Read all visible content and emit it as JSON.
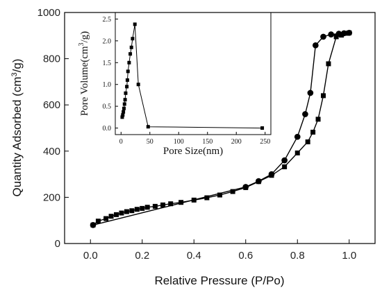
{
  "chart_data": [
    {
      "type": "line",
      "title": "",
      "xlabel": "Relative Pressure (P/Po)",
      "ylabel_parts": [
        "Quantity Adsorbed (cm",
        "3",
        "/g)"
      ],
      "xlim": [
        -0.1,
        1.1
      ],
      "ylim": [
        0,
        1000
      ],
      "xticks": [
        0.0,
        0.2,
        0.4,
        0.6,
        0.8,
        1.0
      ],
      "xtick_labels": [
        "0.0",
        "0.2",
        "0.4",
        "0.6",
        "0.8",
        "1.0"
      ],
      "yticks": [
        0,
        200,
        400,
        600,
        800,
        1000
      ],
      "ytick_labels": [
        "0",
        "200",
        "400",
        "600",
        "800",
        "1000"
      ],
      "grid": false,
      "legend": "none",
      "series": [
        {
          "marker": "square",
          "points": [
            [
              0.01,
              80
            ],
            [
              0.03,
              97
            ],
            [
              0.06,
              108
            ],
            [
              0.08,
              118
            ],
            [
              0.1,
              125
            ],
            [
              0.12,
              132
            ],
            [
              0.14,
              138
            ],
            [
              0.16,
              142
            ],
            [
              0.18,
              148
            ],
            [
              0.2,
              152
            ],
            [
              0.22,
              157
            ],
            [
              0.25,
              161
            ],
            [
              0.28,
              167
            ],
            [
              0.31,
              172
            ],
            [
              0.35,
              178
            ],
            [
              0.4,
              188
            ],
            [
              0.45,
              198
            ],
            [
              0.5,
              210
            ],
            [
              0.55,
              225
            ],
            [
              0.6,
              242
            ],
            [
              0.65,
              268
            ],
            [
              0.7,
              295
            ],
            [
              0.75,
              332
            ],
            [
              0.8,
              392
            ],
            [
              0.84,
              440
            ],
            [
              0.86,
              482
            ],
            [
              0.88,
              538
            ],
            [
              0.9,
              640
            ],
            [
              0.92,
              778
            ],
            [
              0.95,
              895
            ],
            [
              0.97,
              902
            ],
            [
              0.99,
              910
            ],
            [
              1.0,
              912
            ]
          ]
        },
        {
          "marker": "circle",
          "points": [
            [
              0.01,
              80
            ],
            [
              0.6,
              245
            ],
            [
              0.65,
              270
            ],
            [
              0.7,
              300
            ],
            [
              0.75,
              360
            ],
            [
              0.8,
              462
            ],
            [
              0.83,
              560
            ],
            [
              0.85,
              652
            ],
            [
              0.87,
              858
            ],
            [
              0.9,
              895
            ],
            [
              0.93,
              905
            ],
            [
              0.96,
              908
            ],
            [
              0.98,
              910
            ],
            [
              1.0,
              912
            ]
          ]
        }
      ]
    },
    {
      "type": "line",
      "title": "",
      "xlabel": "Pore Size(nm)",
      "ylabel_parts": [
        "Pore Volume(cm",
        "3",
        "/g)"
      ],
      "xlim": [
        -10,
        260
      ],
      "ylim": [
        -0.15,
        2.65
      ],
      "xticks": [
        0,
        50,
        100,
        150,
        200,
        250
      ],
      "xtick_labels": [
        "0",
        "50",
        "100",
        "150",
        "200",
        "250"
      ],
      "yticks": [
        0.0,
        0.5,
        1.0,
        1.5,
        2.0,
        2.5
      ],
      "ytick_labels": [
        "0.0",
        "0.5",
        "1.0",
        "1.5",
        "2.0",
        "2.5"
      ],
      "grid": false,
      "legend": "none",
      "series": [
        {
          "marker": "square",
          "points": [
            [
              2,
              0.25
            ],
            [
              3,
              0.3
            ],
            [
              4,
              0.37
            ],
            [
              5,
              0.45
            ],
            [
              6,
              0.55
            ],
            [
              7,
              0.65
            ],
            [
              8,
              0.8
            ],
            [
              10,
              0.95
            ],
            [
              11,
              1.1
            ],
            [
              12,
              1.3
            ],
            [
              14,
              1.5
            ],
            [
              16,
              1.7
            ],
            [
              18,
              1.85
            ],
            [
              20,
              2.05
            ],
            [
              24,
              2.38
            ],
            [
              30,
              1.0
            ],
            [
              47,
              0.03
            ],
            [
              245,
              0.0
            ]
          ]
        }
      ]
    }
  ]
}
